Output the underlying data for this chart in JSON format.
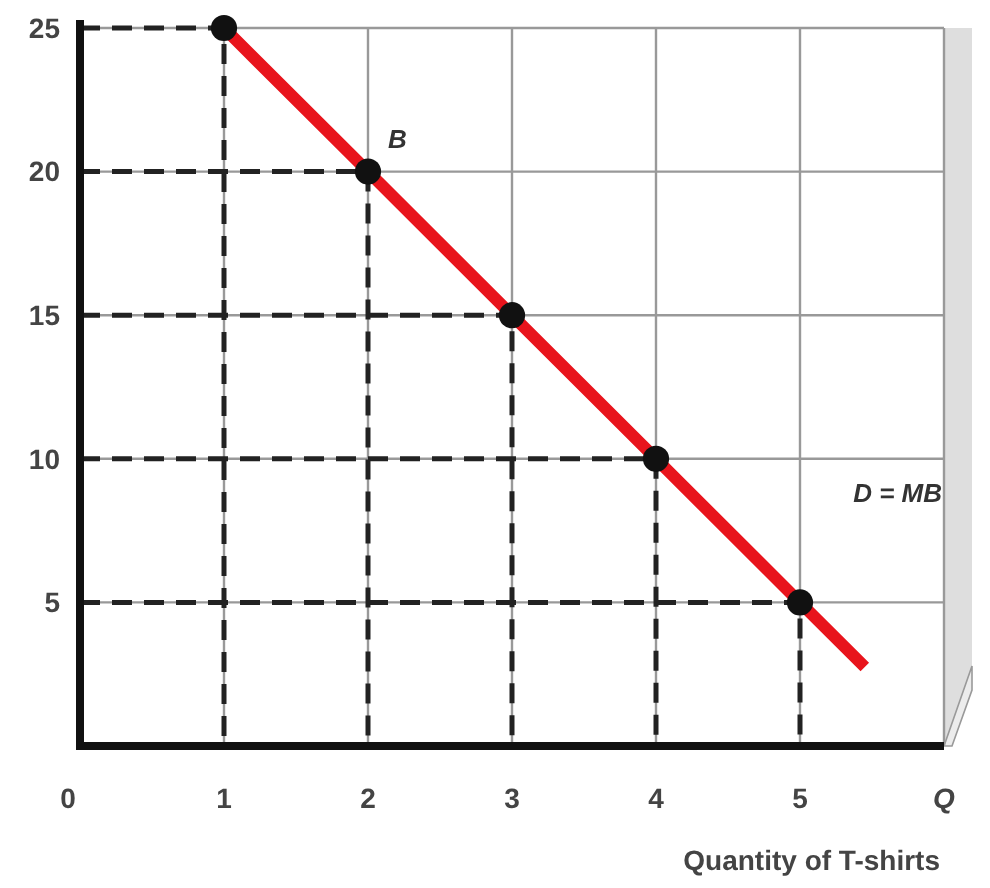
{
  "chart_data": {
    "type": "line",
    "xlabel": "Quantity of T-shirts",
    "xlim": [
      0,
      6
    ],
    "ylim": [
      0,
      25
    ],
    "xticks": [
      0,
      1,
      2,
      3,
      4,
      5,
      {
        "value": 6,
        "label": "Q"
      }
    ],
    "yticks": [
      5,
      10,
      15,
      20,
      25
    ],
    "grid": true,
    "series": [
      {
        "color": "#222222",
        "line_style": "dashed",
        "x": [
          0,
          1,
          1
        ],
        "values": [
          25,
          25,
          0
        ]
      },
      {
        "color": "#222222",
        "line_style": "dashed",
        "x": [
          0,
          2,
          2
        ],
        "values": [
          20,
          20,
          0
        ]
      },
      {
        "color": "#222222",
        "line_style": "dashed",
        "x": [
          0,
          3,
          3
        ],
        "values": [
          15,
          15,
          0
        ]
      },
      {
        "color": "#222222",
        "line_style": "dashed",
        "x": [
          0,
          4,
          4
        ],
        "values": [
          10,
          10,
          0
        ]
      },
      {
        "color": "#222222",
        "line_style": "dashed",
        "x": [
          0,
          5,
          5
        ],
        "values": [
          5,
          5,
          0
        ]
      },
      {
        "color": "#e8141c",
        "line_style": "solid",
        "x": [
          1,
          2,
          3,
          4,
          5,
          5.45
        ],
        "values": [
          25,
          20,
          15,
          10,
          5,
          2.75
        ]
      },
      {
        "type": "scatter",
        "color": "#111111",
        "x": [
          1,
          2,
          3,
          4,
          5
        ],
        "values": [
          25,
          20,
          15,
          10,
          5
        ],
        "marker": "circle"
      }
    ],
    "annotations": [
      {
        "text": "B",
        "x": 2,
        "y": 20
      },
      "D = MB"
    ]
  }
}
